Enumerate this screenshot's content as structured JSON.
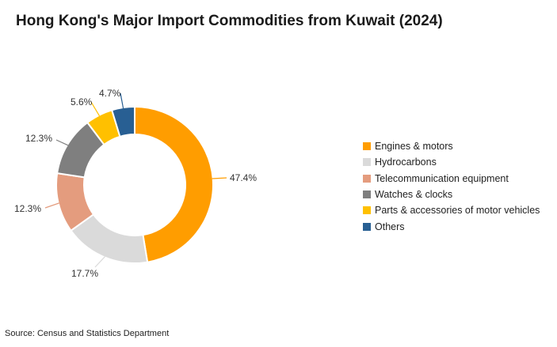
{
  "chart_data": {
    "type": "pie",
    "title": "Hong Kong's Major Import Commodities from Kuwait (2024)",
    "source": "Source: Census and Statistics Department",
    "legend_position": "right",
    "donut": true,
    "slices": [
      {
        "label": "Engines & motors",
        "value": 47.4,
        "display": "47.4%",
        "color": "#FF9D00"
      },
      {
        "label": "Hydrocarbons",
        "value": 17.7,
        "display": "17.7%",
        "color": "#DADADA"
      },
      {
        "label": "Telecommunication equipment",
        "value": 12.3,
        "display": "12.3%",
        "color": "#E49C7E"
      },
      {
        "label": "Watches & clocks",
        "value": 12.3,
        "display": "12.3%",
        "color": "#7F7F7F"
      },
      {
        "label": "Parts & accessories of motor vehicles",
        "value": 5.6,
        "display": "5.6%",
        "color": "#FFC000"
      },
      {
        "label": "Others",
        "value": 4.7,
        "display": "4.7%",
        "color": "#285F93"
      }
    ]
  }
}
